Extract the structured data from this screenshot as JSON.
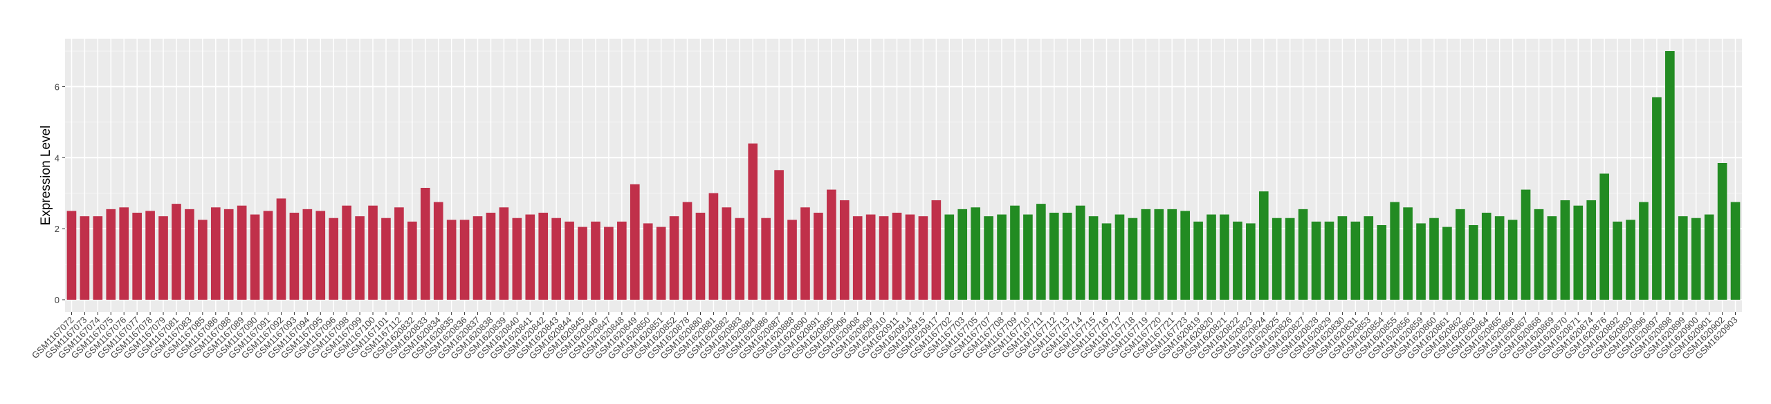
{
  "chart_data": {
    "type": "bar",
    "y_label": "Expression Level",
    "categories": [
      "GSM1167072",
      "GSM1167073",
      "GSM1167074",
      "GSM1167075",
      "GSM1167076",
      "GSM1167077",
      "GSM1167078",
      "GSM1167079",
      "GSM1167081",
      "GSM1167083",
      "GSM1167085",
      "GSM1167086",
      "GSM1167088",
      "GSM1167089",
      "GSM1167090",
      "GSM1167091",
      "GSM1167092",
      "GSM1167093",
      "GSM1167094",
      "GSM1167095",
      "GSM1167096",
      "GSM1167098",
      "GSM1167099",
      "GSM1167100",
      "GSM1167101",
      "GSM1167112",
      "GSM1620832",
      "GSM1620833",
      "GSM1620834",
      "GSM1620835",
      "GSM1620836",
      "GSM1620837",
      "GSM1620838",
      "GSM1620839",
      "GSM1620840",
      "GSM1620841",
      "GSM1620842",
      "GSM1620843",
      "GSM1620844",
      "GSM1620845",
      "GSM1620846",
      "GSM1620847",
      "GSM1620848",
      "GSM1620849",
      "GSM1620850",
      "GSM1620851",
      "GSM1620852",
      "GSM1620878",
      "GSM1620880",
      "GSM1620881",
      "GSM1620882",
      "GSM1620883",
      "GSM1620884",
      "GSM1620886",
      "GSM1620887",
      "GSM1620888",
      "GSM1620890",
      "GSM1620891",
      "GSM1620895",
      "GSM1620906",
      "GSM1620908",
      "GSM1620909",
      "GSM1620910",
      "GSM1620911",
      "GSM1620914",
      "GSM1620915",
      "GSM1620917",
      "GSM1167702",
      "GSM1167703",
      "GSM1167705",
      "GSM1167707",
      "GSM1167708",
      "GSM1167709",
      "GSM1167710",
      "GSM1167711",
      "GSM1167712",
      "GSM1167713",
      "GSM1167714",
      "GSM1167715",
      "GSM1167716",
      "GSM1167717",
      "GSM1167718",
      "GSM1167719",
      "GSM1167720",
      "GSM1167721",
      "GSM1167723",
      "GSM1620819",
      "GSM1620820",
      "GSM1620821",
      "GSM1620822",
      "GSM1620823",
      "GSM1620824",
      "GSM1620825",
      "GSM1620826",
      "GSM1620827",
      "GSM1620828",
      "GSM1620829",
      "GSM1620830",
      "GSM1620831",
      "GSM1620853",
      "GSM1620854",
      "GSM1620855",
      "GSM1620856",
      "GSM1620859",
      "GSM1620860",
      "GSM1620861",
      "GSM1620862",
      "GSM1620863",
      "GSM1620864",
      "GSM1620865",
      "GSM1620866",
      "GSM1620867",
      "GSM1620868",
      "GSM1620869",
      "GSM1620870",
      "GSM1620871",
      "GSM1620874",
      "GSM1620876",
      "GSM1620892",
      "GSM1620893",
      "GSM1620896",
      "GSM1620897",
      "GSM1620898",
      "GSM1620899",
      "GSM1620900",
      "GSM1620901",
      "GSM1620902",
      "GSM1620903"
    ],
    "series": [
      {
        "color": "#c0304a",
        "values": [
          2.5,
          2.35,
          2.35,
          2.55,
          2.6,
          2.45,
          2.5,
          2.35,
          2.7,
          2.55,
          2.25,
          2.6,
          2.55,
          2.65,
          2.4,
          2.5,
          2.85,
          2.45,
          2.55,
          2.5,
          2.3,
          2.65,
          2.35,
          2.65,
          2.3,
          2.6,
          2.2,
          3.15,
          2.75,
          2.25,
          2.25,
          2.35,
          2.45,
          2.6,
          2.3,
          2.4,
          2.45,
          2.3,
          2.2,
          2.05,
          2.2,
          2.05,
          2.2,
          3.25,
          2.15,
          2.05,
          2.35,
          2.75,
          2.45,
          3.0,
          2.6,
          2.3,
          4.4,
          2.3,
          3.65,
          2.25,
          2.6,
          2.45,
          3.1,
          2.8,
          2.35,
          2.4,
          2.35,
          2.45,
          2.4,
          2.35,
          2.8,
          null,
          null,
          null,
          null,
          null,
          null,
          null,
          null,
          null,
          null,
          null,
          null,
          null,
          null,
          null,
          null,
          null,
          null,
          null,
          null,
          null,
          null,
          null,
          null,
          null,
          null,
          null,
          null,
          null,
          null,
          null,
          null,
          null,
          null,
          null,
          null,
          null,
          null,
          null,
          null,
          null,
          null,
          null,
          null,
          null,
          null,
          null,
          null,
          null,
          null,
          null,
          null,
          null,
          null,
          null,
          null,
          null,
          null,
          null,
          null,
          null
        ]
      },
      {
        "color": "#228b22",
        "values": [
          null,
          null,
          null,
          null,
          null,
          null,
          null,
          null,
          null,
          null,
          null,
          null,
          null,
          null,
          null,
          null,
          null,
          null,
          null,
          null,
          null,
          null,
          null,
          null,
          null,
          null,
          null,
          null,
          null,
          null,
          null,
          null,
          null,
          null,
          null,
          null,
          null,
          null,
          null,
          null,
          null,
          null,
          null,
          null,
          null,
          null,
          null,
          null,
          null,
          null,
          null,
          null,
          null,
          null,
          null,
          null,
          null,
          null,
          null,
          null,
          null,
          null,
          null,
          null,
          null,
          null,
          null,
          2.4,
          2.55,
          2.6,
          2.35,
          2.4,
          2.65,
          2.4,
          2.7,
          2.45,
          2.45,
          2.65,
          2.35,
          2.15,
          2.4,
          2.3,
          2.55,
          2.55,
          2.55,
          2.5,
          2.2,
          2.4,
          2.4,
          2.2,
          2.15,
          3.05,
          2.3,
          2.3,
          2.55,
          2.2,
          2.2,
          2.35,
          2.2,
          2.35,
          2.1,
          2.75,
          2.6,
          2.15,
          2.3,
          2.05,
          2.55,
          2.1,
          2.45,
          2.35,
          2.25,
          3.1,
          2.55,
          2.35,
          2.8,
          2.65,
          2.8,
          3.55,
          2.2,
          2.25,
          2.75,
          5.7,
          7.0,
          2.35,
          2.3,
          2.4,
          3.85,
          2.75
        ]
      }
    ],
    "ylim": [
      -0.35,
      7.35
    ],
    "yticks": [
      0,
      2,
      4,
      6
    ],
    "grid": true
  }
}
